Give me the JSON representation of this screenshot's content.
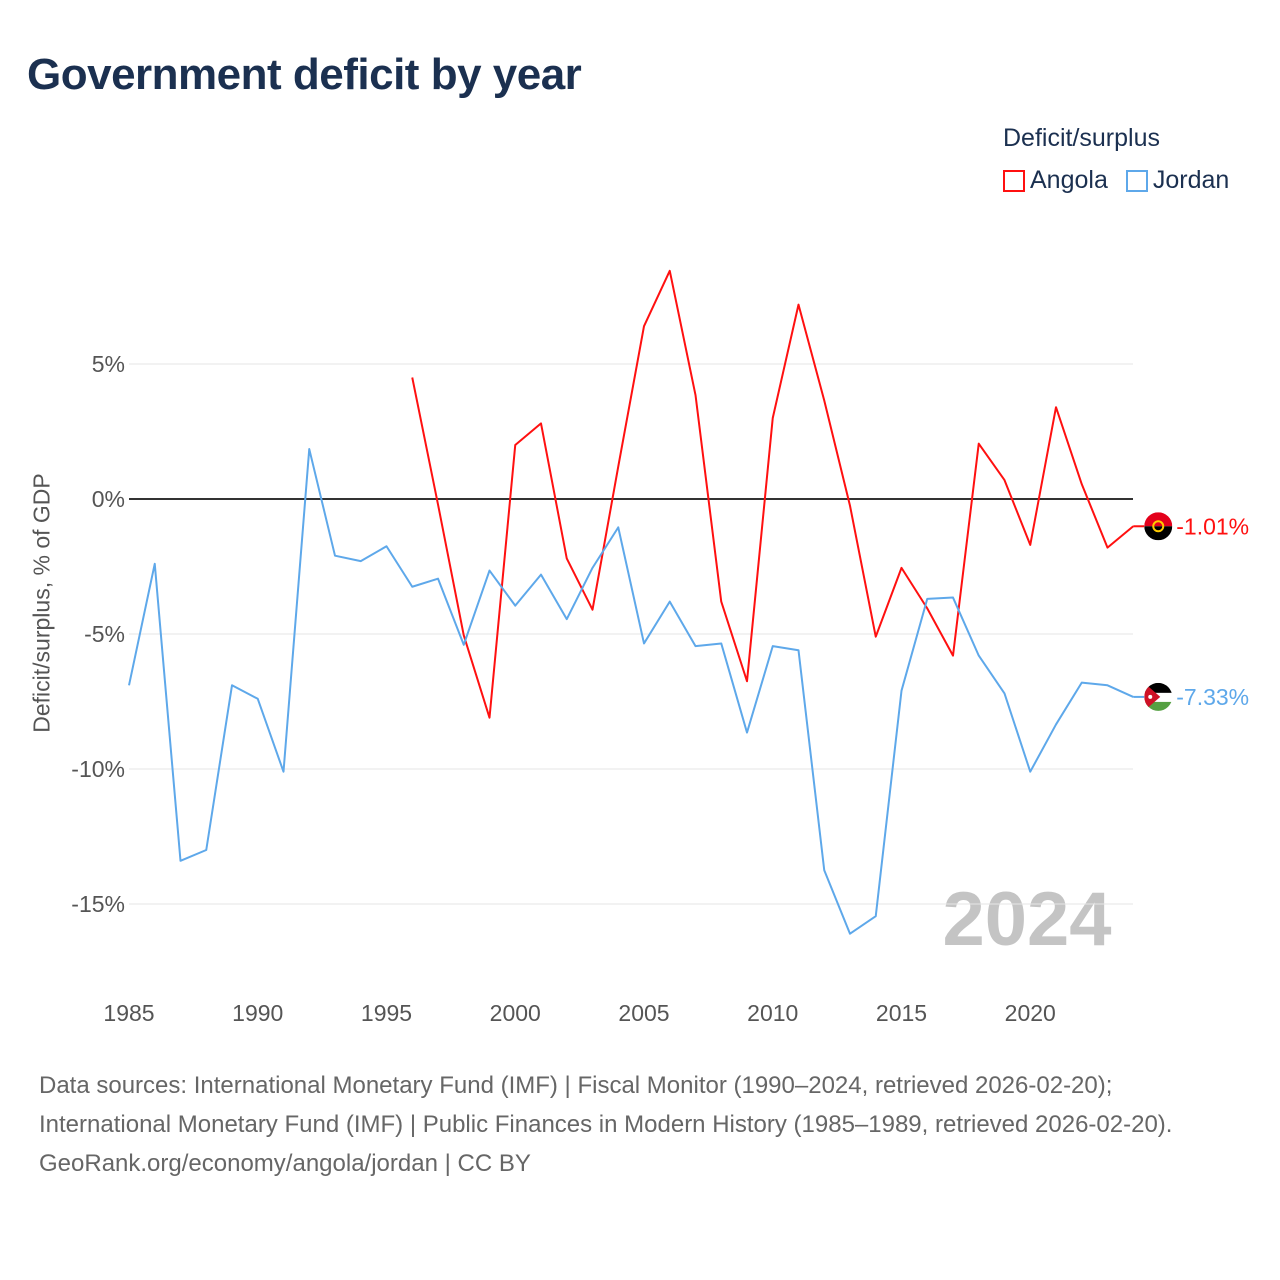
{
  "title": "Government deficit by year",
  "legend": {
    "title": "Deficit/surplus",
    "items": [
      {
        "label": "Angola",
        "color": "#ff1010"
      },
      {
        "label": "Jordan",
        "color": "#5ea8ea"
      }
    ]
  },
  "year_watermark": "2024",
  "chart_data": {
    "type": "line",
    "title": "Government deficit by year",
    "xlabel": "",
    "ylabel": "Deficit/surplus, % of GDP",
    "xlim": [
      1985,
      2024
    ],
    "ylim": [
      -17,
      9
    ],
    "x_ticks": [
      "1985",
      "1990",
      "1995",
      "2000",
      "2005",
      "2010",
      "2015",
      "2020"
    ],
    "y_ticks": [
      {
        "value": 5,
        "label": "5%"
      },
      {
        "value": 0,
        "label": "0%"
      },
      {
        "value": -5,
        "label": "-5%"
      },
      {
        "value": -10,
        "label": "-10%"
      },
      {
        "value": -15,
        "label": "-15%"
      }
    ],
    "legend_position": "top-right",
    "series": [
      {
        "name": "Angola",
        "color": "#ff1010",
        "end_label": "-1.01%",
        "x": [
          1996,
          1997,
          1998,
          1999,
          2000,
          2001,
          2002,
          2003,
          2004,
          2005,
          2006,
          2007,
          2008,
          2009,
          2010,
          2011,
          2012,
          2013,
          2014,
          2015,
          2016,
          2017,
          2018,
          2019,
          2020,
          2021,
          2022,
          2023,
          2024
        ],
        "values": [
          4.5,
          -0.2,
          -5.05,
          -8.1,
          2.0,
          2.8,
          -2.2,
          -4.1,
          1.2,
          6.4,
          8.45,
          3.85,
          -3.8,
          -6.75,
          3.0,
          7.2,
          3.65,
          -0.25,
          -5.1,
          -2.55,
          -4.05,
          -5.8,
          2.05,
          0.7,
          -1.7,
          3.4,
          0.55,
          -1.8,
          -1.01
        ]
      },
      {
        "name": "Jordan",
        "color": "#5ea8ea",
        "end_label": "-7.33%",
        "x": [
          1985,
          1986,
          1987,
          1988,
          1989,
          1990,
          1991,
          1992,
          1993,
          1994,
          1995,
          1996,
          1997,
          1998,
          1999,
          2000,
          2001,
          2002,
          2003,
          2004,
          2005,
          2006,
          2007,
          2008,
          2009,
          2010,
          2011,
          2012,
          2013,
          2014,
          2015,
          2016,
          2017,
          2018,
          2019,
          2020,
          2021,
          2022,
          2023,
          2024
        ],
        "values": [
          -6.9,
          -2.4,
          -13.4,
          -13.0,
          -6.9,
          -7.4,
          -10.1,
          1.85,
          -2.1,
          -2.3,
          -1.75,
          -3.25,
          -2.95,
          -5.4,
          -2.65,
          -3.95,
          -2.8,
          -4.45,
          -2.55,
          -1.05,
          -5.35,
          -3.8,
          -5.45,
          -5.35,
          -8.65,
          -5.45,
          -5.6,
          -13.75,
          -16.1,
          -15.45,
          -7.1,
          -3.7,
          -3.65,
          -5.8,
          -7.2,
          -10.1,
          -8.35,
          -6.8,
          -6.9,
          -7.33
        ]
      }
    ]
  },
  "footer": {
    "sources": "Data sources: International Monetary Fund (IMF) | Fiscal Monitor (1990–2024, retrieved 2026-02-20); International Monetary Fund (IMF) | Public Finances in Modern History (1985–1989, retrieved 2026-02-20).",
    "credit": "GeoRank.org/economy/angola/jordan | CC BY"
  }
}
